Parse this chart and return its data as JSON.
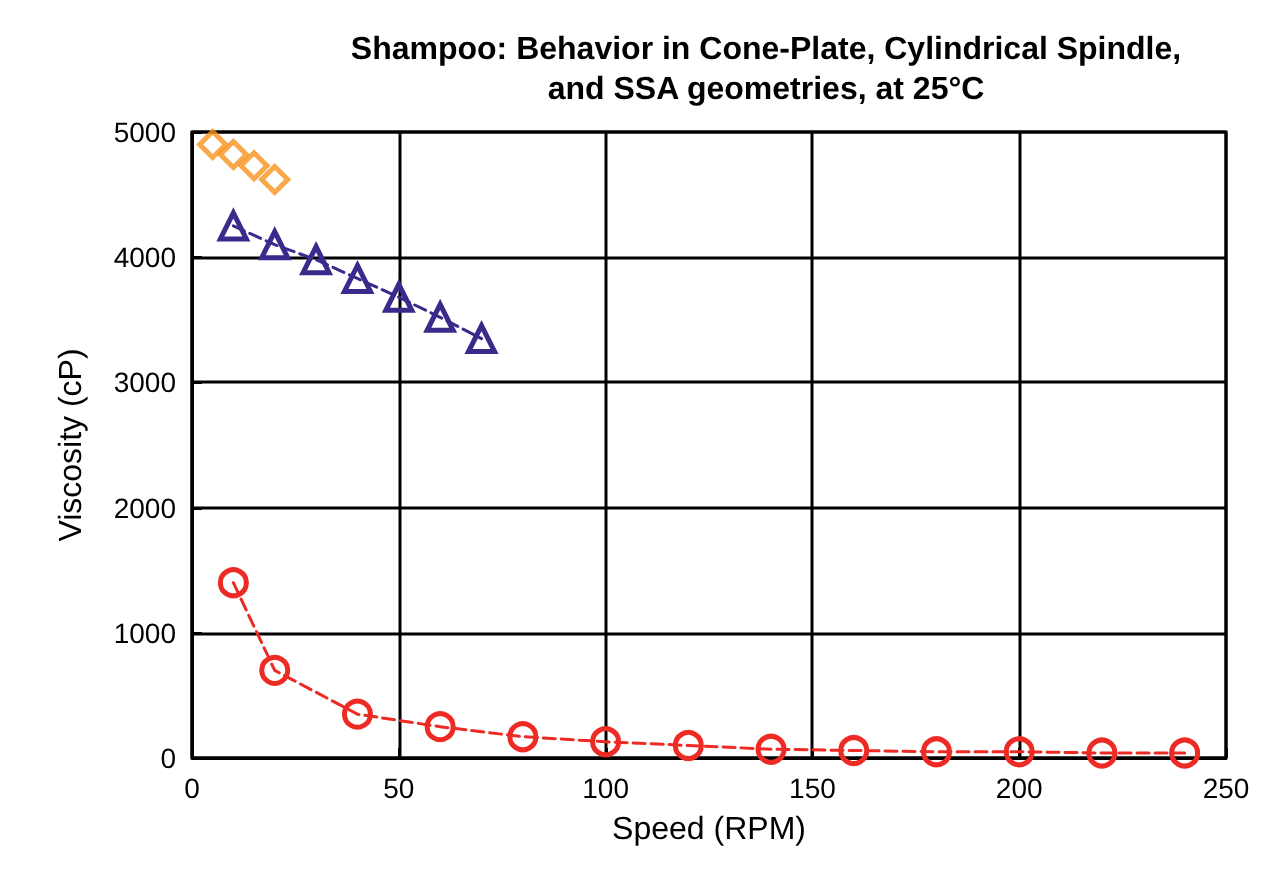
{
  "chart_data": {
    "type": "line",
    "title": "Shampoo: Behavior in Cone-Plate, Cylindrical Spindle,\nand SSA geometries, at 25°C",
    "xlabel": "Speed (RPM)",
    "ylabel": "Viscosity (cP)",
    "series": [
      {
        "type": "scatter",
        "color": "#f7941d",
        "marker": "diamond",
        "x": [
          5,
          10,
          15,
          20
        ],
        "values": [
          4900,
          4820,
          4730,
          4620
        ]
      },
      {
        "color": "#3b2a8c",
        "marker": "triangle",
        "line_style": "dashed",
        "x": [
          10,
          20,
          30,
          40,
          50,
          60,
          70
        ],
        "values": [
          4250,
          4100,
          3980,
          3830,
          3680,
          3520,
          3350
        ]
      },
      {
        "color": "#ee2a24",
        "marker": "circle",
        "line_style": "dashed",
        "x": [
          10,
          20,
          40,
          60,
          80,
          100,
          120,
          140,
          160,
          180,
          200,
          220,
          240
        ],
        "values": [
          1400,
          700,
          350,
          250,
          170,
          130,
          100,
          70,
          60,
          50,
          50,
          40,
          40
        ]
      }
    ],
    "xlim": [
      0,
      250
    ],
    "xticks": [
      0,
      50,
      100,
      150,
      200,
      250
    ],
    "ylim": [
      0,
      5000
    ],
    "yticks": [
      0,
      1000,
      2000,
      3000,
      4000,
      5000
    ],
    "grid": true
  }
}
